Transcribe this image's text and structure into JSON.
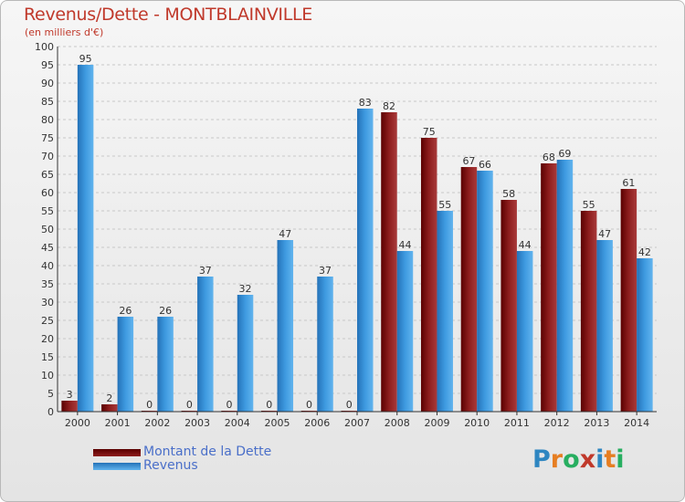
{
  "header": {
    "title": "Revenus/Dette - MONTBLAINVILLE",
    "subtitle": "(en milliers d'€)"
  },
  "colors": {
    "dette": "#7a1010",
    "revenus": "#3a96dc",
    "accent": "#c0392b"
  },
  "chart_data": {
    "type": "bar",
    "title": "Revenus/Dette - MONTBLAINVILLE",
    "subtitle": "(en milliers d'€)",
    "xlabel": "",
    "ylabel": "",
    "ylim": [
      0,
      100
    ],
    "yticks": [
      0,
      5,
      10,
      15,
      20,
      25,
      30,
      35,
      40,
      45,
      50,
      55,
      60,
      65,
      70,
      75,
      80,
      85,
      90,
      95,
      100
    ],
    "grid": true,
    "legend_position": "bottom-left",
    "categories": [
      "2000",
      "2001",
      "2002",
      "2003",
      "2004",
      "2005",
      "2006",
      "2007",
      "2008",
      "2009",
      "2010",
      "2011",
      "2012",
      "2013",
      "2014"
    ],
    "series": [
      {
        "name": "Montant de la Dette",
        "values": [
          3,
          2,
          0,
          0,
          0,
          0,
          0,
          0,
          82,
          75,
          67,
          58,
          68,
          55,
          61
        ]
      },
      {
        "name": "Revenus",
        "values": [
          95,
          26,
          26,
          37,
          32,
          47,
          37,
          83,
          44,
          55,
          66,
          44,
          69,
          47,
          42
        ]
      }
    ]
  },
  "legend": {
    "items": [
      {
        "label": "Montant de la Dette"
      },
      {
        "label": "Revenus"
      }
    ]
  },
  "logo": {
    "letters": [
      {
        "ch": "P",
        "color": "#2e86c1"
      },
      {
        "ch": "r",
        "color": "#e67e22"
      },
      {
        "ch": "o",
        "color": "#27ae60"
      },
      {
        "ch": "x",
        "color": "#c0392b"
      },
      {
        "ch": "i",
        "color": "#2e86c1"
      },
      {
        "ch": "t",
        "color": "#e67e22"
      },
      {
        "ch": "i",
        "color": "#27ae60"
      }
    ]
  }
}
